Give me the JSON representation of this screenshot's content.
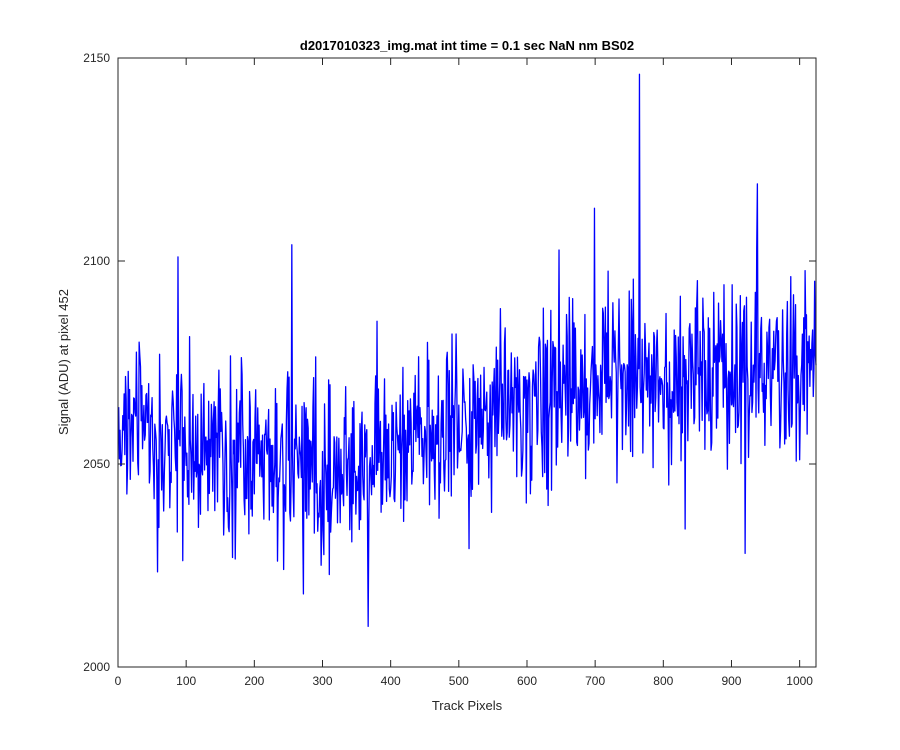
{
  "chart_data": {
    "type": "line",
    "title": "d2017010323_img.mat int time = 0.1 sec  NaN nm BS02",
    "xlabel": "Track Pixels",
    "ylabel": "Signal (ADU) at pixel 452",
    "xlim": [
      0,
      1024
    ],
    "ylim": [
      2000,
      2150
    ],
    "xticks": [
      0,
      100,
      200,
      300,
      400,
      500,
      600,
      700,
      800,
      900,
      1000
    ],
    "yticks": [
      2000,
      2050,
      2100,
      2150
    ],
    "grid": false,
    "legend": "none",
    "line_color": "#0000ff",
    "n_points": 1024,
    "x_start": 1,
    "x_step": 1,
    "trend_anchors": {
      "x": [
        0,
        100,
        200,
        300,
        400,
        500,
        600,
        700,
        800,
        900,
        1024
      ],
      "y": [
        2054,
        2053,
        2050,
        2049,
        2053,
        2060,
        2065,
        2073,
        2070,
        2071,
        2073
      ]
    },
    "noise_amplitude": 11,
    "seed": 20170103,
    "notable_points": [
      {
        "x": 1,
        "y": 2064
      },
      {
        "x": 88,
        "y": 2101
      },
      {
        "x": 255,
        "y": 2104
      },
      {
        "x": 272,
        "y": 2018
      },
      {
        "x": 367,
        "y": 2010
      },
      {
        "x": 699,
        "y": 2113
      },
      {
        "x": 765,
        "y": 2146
      },
      {
        "x": 832,
        "y": 2034
      },
      {
        "x": 920,
        "y": 2028
      },
      {
        "x": 938,
        "y": 2119
      },
      {
        "x": 1022,
        "y": 2095
      }
    ]
  }
}
